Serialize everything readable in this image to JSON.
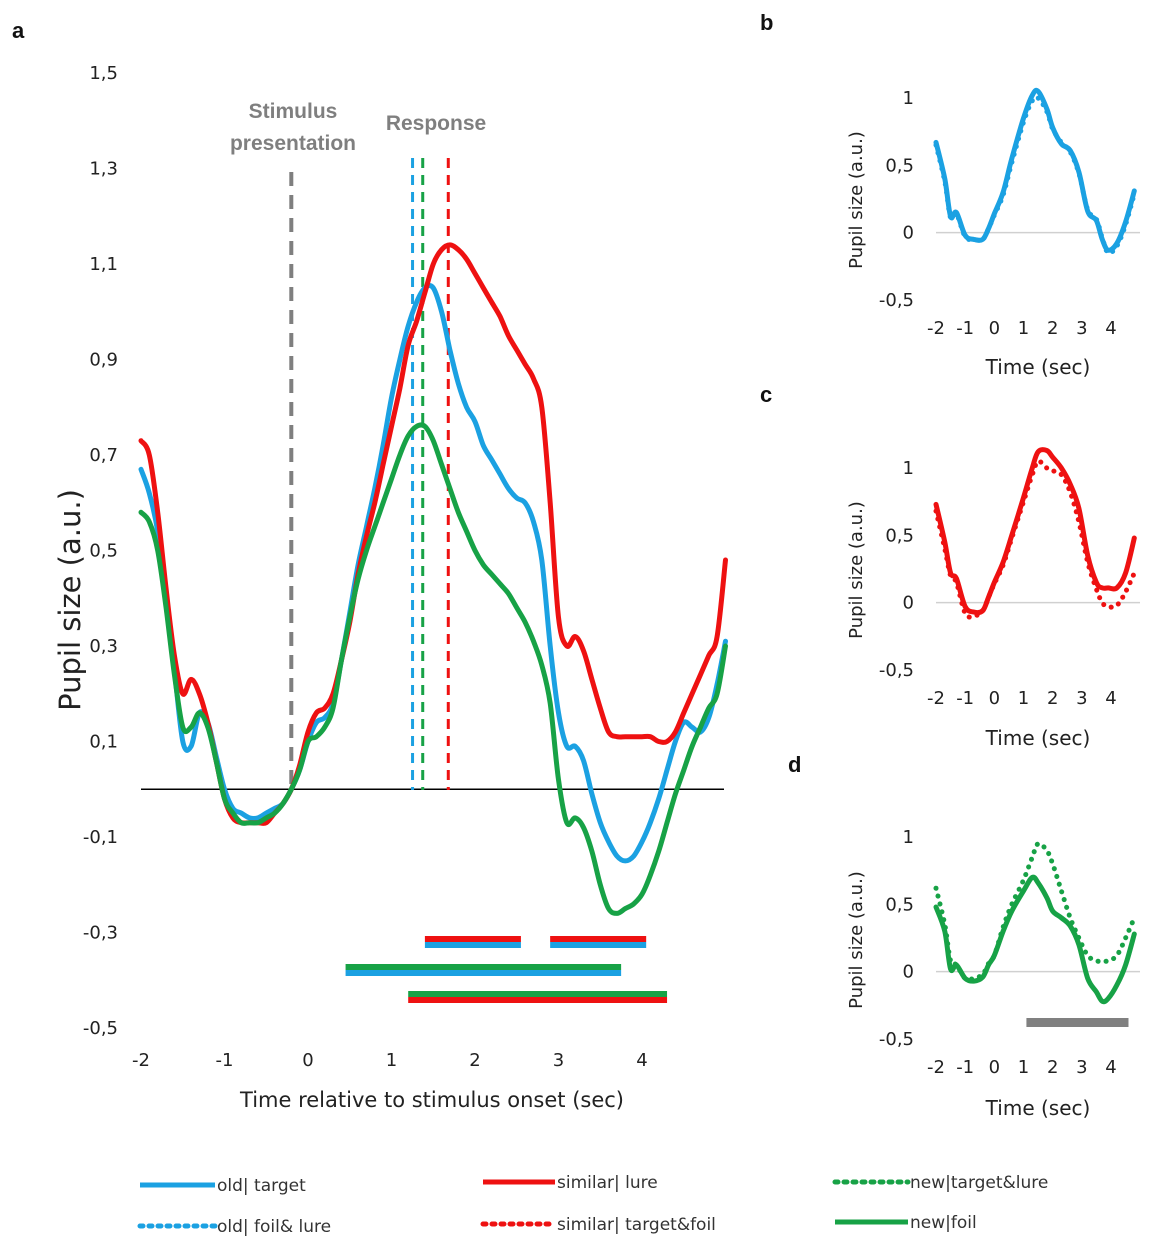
{
  "colors": {
    "blue": "#1BA1E2",
    "red": "#EE1111",
    "green": "#17A246",
    "gray": "#7f7f7f",
    "sig_bar": "#808080"
  },
  "panels": {
    "a": {
      "letter": "a",
      "xlabel": "Time relative to stimulus onset (sec)",
      "ylabel": "Pupil size (a.u.)"
    },
    "b": {
      "letter": "b",
      "xlabel": "Time (sec)",
      "ylabel": "Pupil size (a.u.)"
    },
    "c": {
      "letter": "c",
      "xlabel": "Time (sec)",
      "ylabel": "Pupil size (a.u.)"
    },
    "d": {
      "letter": "d",
      "xlabel": "Time (sec)",
      "ylabel": "Pupil size (a.u.)"
    }
  },
  "annotations": {
    "stimulus_line1": "Stimulus",
    "stimulus_line2": "presentation",
    "response": "Response"
  },
  "legend": [
    {
      "label": "old| target",
      "color": "blue",
      "style": "solid"
    },
    {
      "label": "old| foil& lure",
      "color": "blue",
      "style": "dotted"
    },
    {
      "label": "similar| lure",
      "color": "red",
      "style": "solid"
    },
    {
      "label": "similar| target&foil",
      "color": "red",
      "style": "dotted"
    },
    {
      "label": "new|target&lure",
      "color": "green",
      "style": "dotted"
    },
    {
      "label": "new|foil",
      "color": "green",
      "style": "solid"
    }
  ],
  "chart_data": [
    {
      "panel": "a",
      "type": "line",
      "xlabel": "Time relative to stimulus onset (sec)",
      "ylabel": "Pupil size (a.u.)",
      "xlim": [
        -2,
        5
      ],
      "ylim": [
        -0.5,
        1.5
      ],
      "x_ticks": [
        -2,
        -1,
        0,
        1,
        2,
        3,
        4
      ],
      "x_tick_labels": [
        "-2",
        "-1",
        "0",
        "1",
        "2",
        "3",
        "4"
      ],
      "y_ticks": [
        -0.5,
        -0.3,
        -0.1,
        0.1,
        0.3,
        0.5,
        0.7,
        0.9,
        1.1,
        1.3,
        1.5
      ],
      "y_tick_labels": [
        "-0,5",
        "-0,3",
        "-0,1",
        "0,1",
        "0,3",
        "0,5",
        "0,7",
        "0,9",
        "1,1",
        "1,3",
        "1,5"
      ],
      "baseline_y": 0,
      "vertical_markers": [
        {
          "x": -0.2,
          "color": "gray"
        },
        {
          "x": 1.3,
          "color": "blue"
        },
        {
          "x": 1.35,
          "color": "green"
        },
        {
          "x": 1.68,
          "color": "red"
        }
      ],
      "series": [
        {
          "color": "blue",
          "style": "solid",
          "x": [
            -2,
            -1.9,
            -1.8,
            -1.7,
            -1.6,
            -1.5,
            -1.4,
            -1.3,
            -1.2,
            -1.1,
            -1,
            -0.9,
            -0.8,
            -0.7,
            -0.6,
            -0.5,
            -0.4,
            -0.3,
            -0.2,
            -0.1,
            0,
            0.1,
            0.2,
            0.3,
            0.4,
            0.5,
            0.6,
            0.7,
            0.8,
            0.9,
            1,
            1.1,
            1.2,
            1.3,
            1.4,
            1.5,
            1.6,
            1.7,
            1.8,
            1.9,
            2,
            2.1,
            2.2,
            2.3,
            2.4,
            2.5,
            2.6,
            2.7,
            2.8,
            2.9,
            3,
            3.1,
            3.2,
            3.3,
            3.4,
            3.5,
            3.6,
            3.7,
            3.8,
            3.9,
            4,
            4.1,
            4.2,
            4.3,
            4.4,
            4.5,
            4.6,
            4.7,
            4.8,
            4.9,
            5
          ],
          "y": [
            0.67,
            0.62,
            0.54,
            0.4,
            0.25,
            0.1,
            0.09,
            0.16,
            0.14,
            0.07,
            0,
            -0.04,
            -0.05,
            -0.06,
            -0.06,
            -0.05,
            -0.04,
            -0.03,
            0,
            0.04,
            0.1,
            0.14,
            0.15,
            0.18,
            0.27,
            0.37,
            0.47,
            0.55,
            0.63,
            0.72,
            0.82,
            0.9,
            0.97,
            1.02,
            1.05,
            1.05,
            1.0,
            0.92,
            0.85,
            0.8,
            0.77,
            0.72,
            0.69,
            0.66,
            0.63,
            0.61,
            0.6,
            0.56,
            0.48,
            0.3,
            0.16,
            0.09,
            0.09,
            0.06,
            -0.01,
            -0.07,
            -0.11,
            -0.14,
            -0.15,
            -0.14,
            -0.11,
            -0.07,
            -0.02,
            0.04,
            0.1,
            0.14,
            0.13,
            0.12,
            0.15,
            0.22,
            0.31
          ]
        },
        {
          "color": "red",
          "style": "solid",
          "x": [
            -2,
            -1.9,
            -1.8,
            -1.7,
            -1.6,
            -1.5,
            -1.4,
            -1.3,
            -1.2,
            -1.1,
            -1,
            -0.9,
            -0.8,
            -0.7,
            -0.6,
            -0.5,
            -0.4,
            -0.3,
            -0.2,
            -0.1,
            0,
            0.1,
            0.2,
            0.3,
            0.4,
            0.5,
            0.6,
            0.7,
            0.8,
            0.9,
            1,
            1.1,
            1.2,
            1.3,
            1.4,
            1.5,
            1.6,
            1.7,
            1.8,
            1.9,
            2,
            2.1,
            2.2,
            2.3,
            2.4,
            2.5,
            2.6,
            2.7,
            2.8,
            2.9,
            3,
            3.1,
            3.2,
            3.3,
            3.4,
            3.5,
            3.6,
            3.7,
            3.8,
            3.9,
            4,
            4.1,
            4.2,
            4.3,
            4.4,
            4.5,
            4.6,
            4.7,
            4.8,
            4.9,
            5
          ],
          "y": [
            0.73,
            0.7,
            0.58,
            0.42,
            0.28,
            0.2,
            0.23,
            0.2,
            0.14,
            0.06,
            -0.02,
            -0.06,
            -0.07,
            -0.07,
            -0.07,
            -0.07,
            -0.05,
            -0.03,
            0,
            0.05,
            0.12,
            0.16,
            0.17,
            0.2,
            0.27,
            0.35,
            0.45,
            0.53,
            0.6,
            0.68,
            0.76,
            0.84,
            0.93,
            0.98,
            1.04,
            1.1,
            1.13,
            1.14,
            1.13,
            1.11,
            1.08,
            1.05,
            1.02,
            0.99,
            0.95,
            0.92,
            0.89,
            0.86,
            0.8,
            0.6,
            0.36,
            0.3,
            0.32,
            0.29,
            0.23,
            0.17,
            0.12,
            0.11,
            0.11,
            0.11,
            0.11,
            0.11,
            0.1,
            0.1,
            0.12,
            0.16,
            0.2,
            0.24,
            0.28,
            0.32,
            0.48
          ]
        },
        {
          "color": "green",
          "style": "solid",
          "x": [
            -2,
            -1.9,
            -1.8,
            -1.7,
            -1.6,
            -1.5,
            -1.4,
            -1.3,
            -1.2,
            -1.1,
            -1,
            -0.9,
            -0.8,
            -0.7,
            -0.6,
            -0.5,
            -0.4,
            -0.3,
            -0.2,
            -0.1,
            0,
            0.1,
            0.2,
            0.3,
            0.4,
            0.5,
            0.6,
            0.7,
            0.8,
            0.9,
            1,
            1.1,
            1.2,
            1.3,
            1.4,
            1.5,
            1.6,
            1.7,
            1.8,
            1.9,
            2,
            2.1,
            2.2,
            2.3,
            2.4,
            2.5,
            2.6,
            2.7,
            2.8,
            2.9,
            3,
            3.1,
            3.2,
            3.3,
            3.4,
            3.5,
            3.6,
            3.7,
            3.8,
            3.9,
            4,
            4.1,
            4.2,
            4.3,
            4.4,
            4.5,
            4.6,
            4.7,
            4.8,
            4.9,
            5
          ],
          "y": [
            0.58,
            0.56,
            0.5,
            0.38,
            0.24,
            0.13,
            0.13,
            0.16,
            0.13,
            0.06,
            -0.02,
            -0.05,
            -0.07,
            -0.07,
            -0.07,
            -0.06,
            -0.05,
            -0.03,
            0,
            0.04,
            0.1,
            0.11,
            0.13,
            0.17,
            0.27,
            0.36,
            0.44,
            0.5,
            0.55,
            0.6,
            0.65,
            0.7,
            0.74,
            0.76,
            0.76,
            0.73,
            0.68,
            0.63,
            0.58,
            0.54,
            0.5,
            0.47,
            0.45,
            0.43,
            0.41,
            0.38,
            0.35,
            0.31,
            0.26,
            0.18,
            0.02,
            -0.07,
            -0.06,
            -0.08,
            -0.13,
            -0.2,
            -0.25,
            -0.26,
            -0.25,
            -0.24,
            -0.22,
            -0.18,
            -0.13,
            -0.07,
            -0.01,
            0.04,
            0.09,
            0.13,
            0.17,
            0.2,
            0.3
          ]
        }
      ],
      "sig_bars": [
        {
          "x0": 1.4,
          "x1": 2.55,
          "colors": [
            "red",
            "blue"
          ]
        },
        {
          "x0": 2.9,
          "x1": 4.05,
          "colors": [
            "red",
            "blue"
          ]
        },
        {
          "x0": 0.45,
          "x1": 3.75,
          "colors": [
            "green",
            "blue"
          ]
        },
        {
          "x0": 1.2,
          "x1": 4.3,
          "colors": [
            "green",
            "red"
          ]
        }
      ]
    },
    {
      "panel": "b",
      "type": "line",
      "xlabel": "Time (sec)",
      "ylabel": "Pupil size (a.u.)",
      "xlim": [
        -2,
        5
      ],
      "ylim": [
        -0.5,
        1
      ],
      "x_ticks": [
        -2,
        -1,
        0,
        1,
        2,
        3,
        4
      ],
      "x_tick_labels": [
        "-2",
        "-1",
        "0",
        "1",
        "2",
        "3",
        "4"
      ],
      "y_ticks": [
        -0.5,
        0,
        0.5,
        1
      ],
      "y_tick_labels": [
        "-0,5",
        "0",
        "0,5",
        "1"
      ],
      "series": [
        {
          "color": "blue",
          "style": "solid",
          "x": [
            -2,
            -1.7,
            -1.5,
            -1.3,
            -1,
            -0.7,
            -0.4,
            -0.2,
            0,
            0.3,
            0.6,
            1,
            1.3,
            1.5,
            1.8,
            2,
            2.3,
            2.6,
            2.9,
            3.2,
            3.5,
            3.7,
            3.9,
            4.2,
            4.5,
            4.8
          ],
          "y": [
            0.67,
            0.4,
            0.12,
            0.15,
            -0.02,
            -0.05,
            -0.05,
            0.03,
            0.14,
            0.3,
            0.55,
            0.85,
            1.02,
            1.05,
            0.92,
            0.78,
            0.66,
            0.61,
            0.45,
            0.16,
            0.09,
            -0.05,
            -0.13,
            -0.08,
            0.08,
            0.31
          ]
        },
        {
          "color": "blue",
          "style": "dotted",
          "x": [
            -2,
            -1.7,
            -1.5,
            -1.3,
            -1,
            -0.7,
            -0.4,
            -0.2,
            0,
            0.3,
            0.6,
            1,
            1.3,
            1.5,
            1.8,
            2,
            2.3,
            2.6,
            2.9,
            3.2,
            3.5,
            3.7,
            3.9,
            4.2,
            4.5,
            4.8
          ],
          "y": [
            0.65,
            0.38,
            0.11,
            0.14,
            -0.03,
            -0.05,
            -0.05,
            0.03,
            0.13,
            0.28,
            0.52,
            0.82,
            0.98,
            1.0,
            0.9,
            0.77,
            0.67,
            0.6,
            0.44,
            0.17,
            0.1,
            -0.04,
            -0.15,
            -0.1,
            0.06,
            0.29
          ]
        }
      ]
    },
    {
      "panel": "c",
      "type": "line",
      "xlabel": "Time (sec)",
      "ylabel": "Pupil size (a.u.)",
      "xlim": [
        -2,
        5
      ],
      "ylim": [
        -0.5,
        1
      ],
      "x_ticks": [
        -2,
        -1,
        0,
        1,
        2,
        3,
        4
      ],
      "x_tick_labels": [
        "-2",
        "-1",
        "0",
        "1",
        "2",
        "3",
        "4"
      ],
      "y_ticks": [
        -0.5,
        0,
        0.5,
        1
      ],
      "y_tick_labels": [
        "-0,5",
        "0",
        "0,5",
        "1"
      ],
      "series": [
        {
          "color": "red",
          "style": "solid",
          "x": [
            -2,
            -1.7,
            -1.5,
            -1.3,
            -1,
            -0.7,
            -0.4,
            -0.2,
            0,
            0.3,
            0.6,
            1,
            1.3,
            1.5,
            1.8,
            2,
            2.3,
            2.6,
            2.9,
            3.2,
            3.5,
            3.7,
            3.9,
            4.2,
            4.5,
            4.8
          ],
          "y": [
            0.73,
            0.45,
            0.22,
            0.18,
            -0.03,
            -0.07,
            -0.06,
            0.04,
            0.15,
            0.3,
            0.5,
            0.78,
            1.0,
            1.12,
            1.13,
            1.08,
            1.0,
            0.88,
            0.7,
            0.35,
            0.15,
            0.11,
            0.11,
            0.11,
            0.22,
            0.48
          ]
        },
        {
          "color": "red",
          "style": "dotted",
          "x": [
            -2,
            -1.7,
            -1.5,
            -1.3,
            -1,
            -0.7,
            -0.4,
            -0.2,
            0,
            0.3,
            0.6,
            1,
            1.3,
            1.5,
            1.8,
            2,
            2.3,
            2.6,
            2.9,
            3.2,
            3.5,
            3.7,
            3.9,
            4.2,
            4.5,
            4.8
          ],
          "y": [
            0.68,
            0.4,
            0.2,
            0.15,
            -0.08,
            -0.1,
            -0.06,
            0.04,
            0.14,
            0.28,
            0.48,
            0.75,
            0.95,
            1.05,
            1.0,
            0.98,
            0.95,
            0.82,
            0.6,
            0.3,
            0.1,
            0.0,
            -0.03,
            -0.02,
            0.08,
            0.22
          ]
        }
      ]
    },
    {
      "panel": "d",
      "type": "line",
      "xlabel": "Time (sec)",
      "ylabel": "Pupil size (a.u.)",
      "xlim": [
        -2,
        5
      ],
      "ylim": [
        -0.5,
        1
      ],
      "x_ticks": [
        -2,
        -1,
        0,
        1,
        2,
        3,
        4
      ],
      "x_tick_labels": [
        "-2",
        "-1",
        "0",
        "1",
        "2",
        "3",
        "4"
      ],
      "y_ticks": [
        -0.5,
        0,
        0.5,
        1
      ],
      "y_tick_labels": [
        "-0,5",
        "0",
        "0,5",
        "1"
      ],
      "sig_bar": {
        "x0": 1.1,
        "x1": 4.6
      },
      "series": [
        {
          "color": "green",
          "style": "solid",
          "x": [
            -2,
            -1.7,
            -1.5,
            -1.3,
            -1,
            -0.7,
            -0.4,
            -0.2,
            0,
            0.3,
            0.6,
            1,
            1.3,
            1.5,
            1.8,
            2,
            2.3,
            2.6,
            2.9,
            3.2,
            3.5,
            3.7,
            3.9,
            4.2,
            4.5,
            4.8
          ],
          "y": [
            0.48,
            0.3,
            0.02,
            0.05,
            -0.05,
            -0.07,
            -0.04,
            0.05,
            0.12,
            0.3,
            0.45,
            0.6,
            0.7,
            0.66,
            0.55,
            0.45,
            0.4,
            0.34,
            0.2,
            -0.05,
            -0.15,
            -0.22,
            -0.2,
            -0.1,
            0.05,
            0.28
          ]
        },
        {
          "color": "green",
          "style": "dotted",
          "x": [
            -2,
            -1.7,
            -1.5,
            -1.3,
            -1,
            -0.7,
            -0.4,
            -0.2,
            0,
            0.3,
            0.6,
            1,
            1.3,
            1.5,
            1.8,
            2,
            2.3,
            2.6,
            2.9,
            3.2,
            3.5,
            3.7,
            3.9,
            4.2,
            4.5,
            4.8
          ],
          "y": [
            0.62,
            0.35,
            0.08,
            0.05,
            -0.05,
            -0.05,
            -0.02,
            0.06,
            0.12,
            0.33,
            0.5,
            0.68,
            0.85,
            0.95,
            0.9,
            0.8,
            0.6,
            0.4,
            0.25,
            0.12,
            0.08,
            0.08,
            0.08,
            0.12,
            0.25,
            0.4
          ]
        }
      ]
    }
  ]
}
